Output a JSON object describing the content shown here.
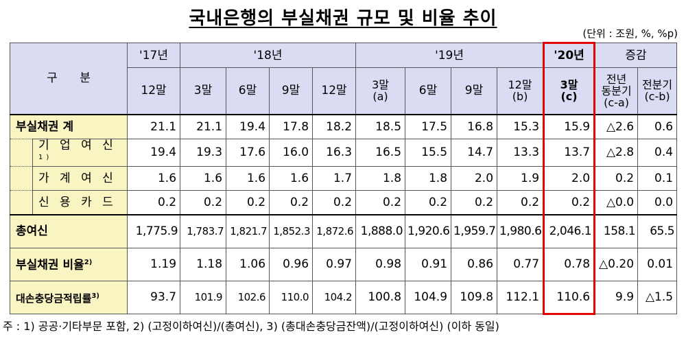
{
  "title": "국내은행의 부실채권 규모 및 비율 추이",
  "unit": "(단위 : 조원, %, %p)",
  "header": {
    "gubun": "구      분",
    "y17": "'17년",
    "y18": "'18년",
    "y19": "'19년",
    "y20": "'20년",
    "change": "증감",
    "cols": [
      "12말",
      "3말",
      "6말",
      "9말",
      "12말",
      "3말\n(a)",
      "6말",
      "9말",
      "12말\n(b)",
      "3말\n(c)",
      "전년\n동분기\n(c-a)",
      "전분기\n(c-b)"
    ]
  },
  "rows": [
    {
      "label": "부실채권 계",
      "values": [
        "21.1",
        "21.1",
        "19.4",
        "17.8",
        "18.2",
        "18.5",
        "17.5",
        "16.8",
        "15.3",
        "15.9",
        "△2.6",
        "0.6"
      ]
    },
    {
      "label": "기 업 여 신",
      "sup": "1)",
      "values": [
        "19.4",
        "19.3",
        "17.6",
        "16.0",
        "16.3",
        "16.5",
        "15.5",
        "14.7",
        "13.3",
        "13.7",
        "△2.8",
        "0.4"
      ]
    },
    {
      "label": "가 계 여 신",
      "values": [
        "1.6",
        "1.6",
        "1.6",
        "1.6",
        "1.7",
        "1.8",
        "1.8",
        "2.0",
        "1.9",
        "2.0",
        "0.2",
        "0.1"
      ]
    },
    {
      "label": "신 용 카 드",
      "values": [
        "0.2",
        "0.2",
        "0.2",
        "0.2",
        "0.2",
        "0.2",
        "0.2",
        "0.2",
        "0.2",
        "0.2",
        "△0.0",
        "0.0"
      ]
    },
    {
      "label": "총여신",
      "values": [
        "1,775.9",
        "1,783.7",
        "1,821.7",
        "1,852.3",
        "1,872.6",
        "1,888.0",
        "1,920.6",
        "1,959.7",
        "1,980.6",
        "2,046.1",
        "158.1",
        "65.5"
      ]
    },
    {
      "label": "부실채권 비율",
      "sup": "2)",
      "values": [
        "1.19",
        "1.18",
        "1.06",
        "0.96",
        "0.97",
        "0.98",
        "0.91",
        "0.86",
        "0.77",
        "0.78",
        "△0.20",
        "0.01"
      ]
    },
    {
      "label": "대손충당금적립률",
      "sup": "3)",
      "values": [
        "93.7",
        "101.9",
        "102.6",
        "110.0",
        "104.2",
        "100.8",
        "104.9",
        "109.8",
        "112.1",
        "110.6",
        "9.9",
        "△1.5"
      ]
    }
  ],
  "footnote": "주 : 1) 공공·기타부문 포함, 2) (고정이하여신)/(총여신), 3) (총대손충당금잔액)/(고정이하여신) (이하 동일)"
}
